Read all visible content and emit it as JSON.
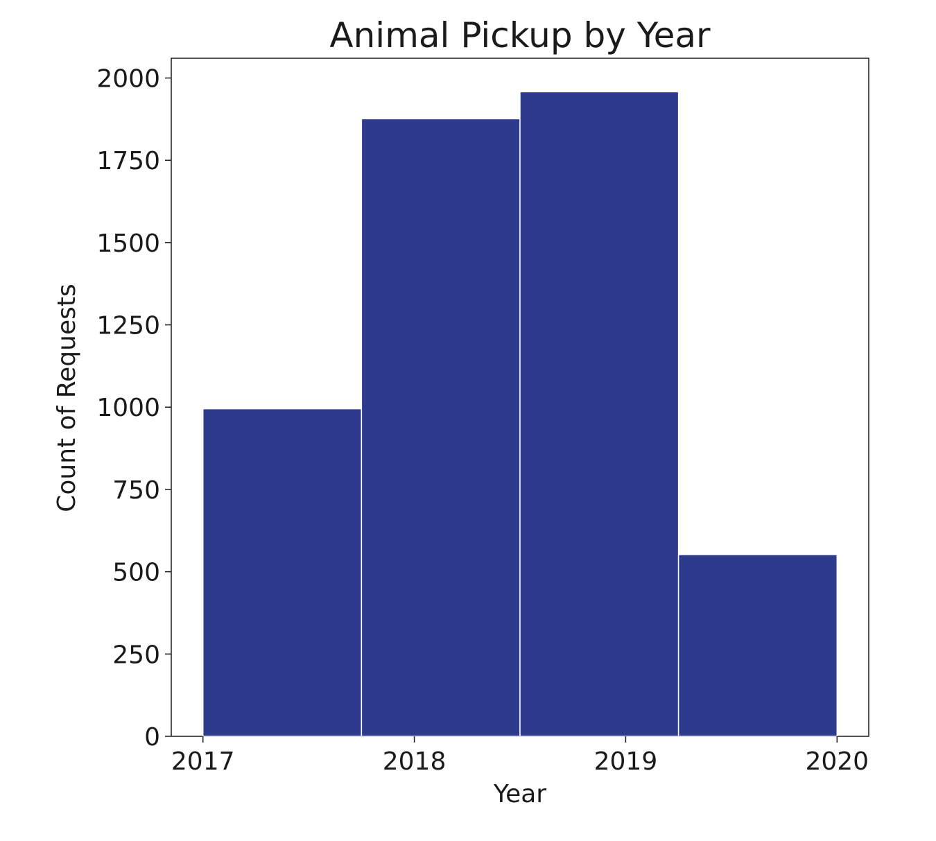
{
  "chart_data": {
    "type": "bar",
    "title": "Animal Pickup by Year",
    "xlabel": "Year",
    "ylabel": "Count of Requests",
    "xlim": [
      2016.85,
      2020.15
    ],
    "ylim": [
      0,
      2060
    ],
    "x_ticks": [
      2017,
      2018,
      2019,
      2020
    ],
    "x_tick_labels": [
      "2017",
      "2018",
      "2019",
      "2020"
    ],
    "y_ticks": [
      0,
      250,
      500,
      750,
      1000,
      1250,
      1500,
      1750,
      2000
    ],
    "y_tick_labels": [
      "0",
      "250",
      "500",
      "750",
      "1000",
      "1250",
      "1500",
      "1750",
      "2000"
    ],
    "bins": [
      {
        "x0": 2017.0,
        "x1": 2017.75,
        "value": 995
      },
      {
        "x0": 2017.75,
        "x1": 2018.5,
        "value": 1876
      },
      {
        "x0": 2018.5,
        "x1": 2019.25,
        "value": 1958
      },
      {
        "x0": 2019.25,
        "x1": 2020.0,
        "value": 552
      }
    ],
    "bar_color": "#2e3a8c",
    "bar_edge_color": "#ffffff",
    "grid": false,
    "legend": "none"
  }
}
